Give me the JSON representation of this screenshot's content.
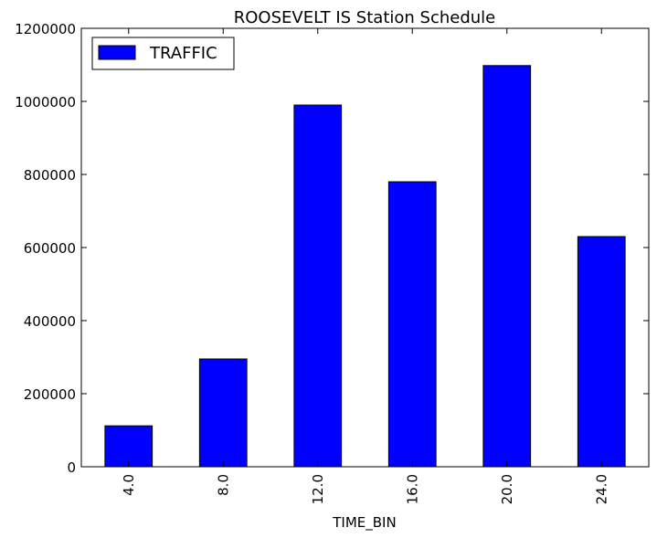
{
  "chart_data": {
    "type": "bar",
    "title": "ROOSEVELT IS Station Schedule",
    "xlabel": "TIME_BIN",
    "ylabel": "",
    "categories": [
      "4.0",
      "8.0",
      "12.0",
      "16.0",
      "20.0",
      "24.0"
    ],
    "series": [
      {
        "name": "TRAFFIC",
        "values": [
          112000,
          295000,
          990000,
          780000,
          1098000,
          630000
        ]
      }
    ],
    "ylim": [
      0,
      1200000
    ],
    "yticks": [
      "0",
      "200000",
      "400000",
      "600000",
      "800000",
      "1000000",
      "1200000"
    ],
    "grid": false,
    "legend_position": "top-left",
    "bar_color": "#0000ff",
    "edge_color": "#000000"
  }
}
